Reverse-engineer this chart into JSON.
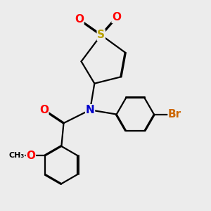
{
  "background_color": "#ececec",
  "atom_colors": {
    "S": "#b8a000",
    "O": "#ff0000",
    "N": "#0000cc",
    "Br": "#cc6600",
    "C": "#000000"
  },
  "bond_color": "#000000",
  "bond_width": 1.6,
  "fig_width": 3.0,
  "fig_height": 3.0,
  "dpi": 100
}
